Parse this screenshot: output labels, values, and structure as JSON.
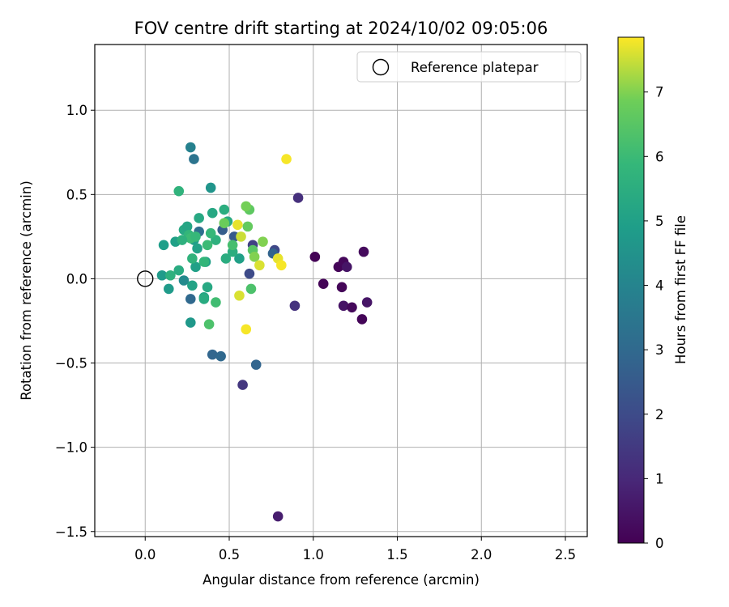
{
  "chart_data": {
    "type": "scatter",
    "title": "FOV centre drift starting at 2024/10/02 09:05:06",
    "xlabel": "Angular distance from reference (arcmin)",
    "ylabel": "Rotation from reference (arcmin)",
    "xlim": [
      -0.3,
      2.63
    ],
    "ylim": [
      -1.53,
      1.39
    ],
    "xticks": [
      0.0,
      0.5,
      1.0,
      1.5,
      2.0,
      2.5
    ],
    "xtick_labels": [
      "0.0",
      "0.5",
      "1.0",
      "1.5",
      "2.0",
      "2.5"
    ],
    "yticks": [
      -1.5,
      -1.0,
      -0.5,
      0.0,
      0.5,
      1.0
    ],
    "ytick_labels": [
      "−1.5",
      "−1.0",
      "−0.5",
      "0.0",
      "0.5",
      "1.0"
    ],
    "grid": true,
    "legend": {
      "placement": "top-right",
      "entries": [
        "Reference platepar"
      ]
    },
    "reference_point": {
      "x": 0.0,
      "y": 0.0,
      "marker": "open-circle"
    },
    "colorbar": {
      "label": "Hours from first FF file",
      "colormap": "viridis",
      "range": [
        0,
        7.85
      ],
      "ticks": [
        0,
        1,
        2,
        3,
        4,
        5,
        6,
        7
      ],
      "tick_labels": [
        "0",
        "1",
        "2",
        "3",
        "4",
        "5",
        "6",
        "7"
      ]
    },
    "points": [
      {
        "x": 1.01,
        "y": 0.13,
        "h": 0.05
      },
      {
        "x": 1.06,
        "y": -0.03,
        "h": 0.08
      },
      {
        "x": 1.15,
        "y": 0.07,
        "h": 0.1
      },
      {
        "x": 1.17,
        "y": -0.05,
        "h": 0.12
      },
      {
        "x": 1.18,
        "y": 0.1,
        "h": 0.15
      },
      {
        "x": 1.2,
        "y": 0.07,
        "h": 0.5
      },
      {
        "x": 1.18,
        "y": -0.16,
        "h": 0.45
      },
      {
        "x": 1.23,
        "y": -0.17,
        "h": 0.2
      },
      {
        "x": 1.29,
        "y": -0.24,
        "h": 0.1
      },
      {
        "x": 1.3,
        "y": 0.16,
        "h": 0.25
      },
      {
        "x": 1.32,
        "y": -0.14,
        "h": 0.5
      },
      {
        "x": 0.79,
        "y": -1.41,
        "h": 0.7
      },
      {
        "x": 0.91,
        "y": 0.48,
        "h": 1.2
      },
      {
        "x": 0.89,
        "y": -0.16,
        "h": 1.3
      },
      {
        "x": 0.58,
        "y": -0.63,
        "h": 1.4
      },
      {
        "x": 0.64,
        "y": 0.2,
        "h": 1.7
      },
      {
        "x": 0.77,
        "y": 0.17,
        "h": 1.9
      },
      {
        "x": 0.62,
        "y": 0.03,
        "h": 2.0
      },
      {
        "x": 0.53,
        "y": 0.25,
        "h": 2.5
      },
      {
        "x": 0.46,
        "y": 0.29,
        "h": 2.6
      },
      {
        "x": 0.76,
        "y": 0.15,
        "h": 2.8
      },
      {
        "x": 0.66,
        "y": -0.51,
        "h": 2.85
      },
      {
        "x": 0.4,
        "y": -0.45,
        "h": 2.9
      },
      {
        "x": 0.45,
        "y": -0.46,
        "h": 3.0
      },
      {
        "x": 0.27,
        "y": -0.12,
        "h": 3.0
      },
      {
        "x": 0.32,
        "y": 0.28,
        "h": 3.2
      },
      {
        "x": 0.29,
        "y": 0.71,
        "h": 3.4
      },
      {
        "x": 0.27,
        "y": 0.78,
        "h": 3.9
      },
      {
        "x": 0.39,
        "y": 0.54,
        "h": 4.6
      },
      {
        "x": 0.23,
        "y": -0.01,
        "h": 4.2
      },
      {
        "x": 0.27,
        "y": -0.26,
        "h": 4.7
      },
      {
        "x": 0.14,
        "y": -0.06,
        "h": 4.8
      },
      {
        "x": 0.1,
        "y": 0.02,
        "h": 4.8
      },
      {
        "x": 0.11,
        "y": 0.2,
        "h": 4.9
      },
      {
        "x": 0.18,
        "y": 0.22,
        "h": 5.0
      },
      {
        "x": 0.23,
        "y": 0.29,
        "h": 5.3
      },
      {
        "x": 0.25,
        "y": 0.31,
        "h": 5.2
      },
      {
        "x": 0.29,
        "y": 0.23,
        "h": 4.95
      },
      {
        "x": 0.31,
        "y": 0.18,
        "h": 5.05
      },
      {
        "x": 0.3,
        "y": 0.07,
        "h": 5.0
      },
      {
        "x": 0.28,
        "y": -0.04,
        "h": 5.1
      },
      {
        "x": 0.35,
        "y": -0.11,
        "h": 5.2
      },
      {
        "x": 0.35,
        "y": -0.12,
        "h": 5.4
      },
      {
        "x": 0.37,
        "y": -0.05,
        "h": 5.3
      },
      {
        "x": 0.36,
        "y": 0.1,
        "h": 5.0
      },
      {
        "x": 0.4,
        "y": 0.39,
        "h": 5.25
      },
      {
        "x": 0.42,
        "y": 0.23,
        "h": 5.6
      },
      {
        "x": 0.47,
        "y": 0.41,
        "h": 5.5
      },
      {
        "x": 0.49,
        "y": 0.34,
        "h": 5.4
      },
      {
        "x": 0.48,
        "y": 0.12,
        "h": 5.45
      },
      {
        "x": 0.56,
        "y": 0.12,
        "h": 5.0
      },
      {
        "x": 0.52,
        "y": 0.16,
        "h": 5.5
      },
      {
        "x": 0.32,
        "y": 0.36,
        "h": 5.3
      },
      {
        "x": 0.2,
        "y": 0.52,
        "h": 5.7
      },
      {
        "x": 0.2,
        "y": 0.05,
        "h": 5.4
      },
      {
        "x": 0.15,
        "y": 0.02,
        "h": 5.6
      },
      {
        "x": 0.28,
        "y": 0.12,
        "h": 5.7
      },
      {
        "x": 0.26,
        "y": 0.26,
        "h": 5.8
      },
      {
        "x": 0.27,
        "y": 0.24,
        "h": 6.0
      },
      {
        "x": 0.3,
        "y": 0.25,
        "h": 5.9
      },
      {
        "x": 0.37,
        "y": 0.2,
        "h": 6.0
      },
      {
        "x": 0.39,
        "y": 0.27,
        "h": 5.9
      },
      {
        "x": 0.35,
        "y": 0.1,
        "h": 5.8
      },
      {
        "x": 0.38,
        "y": -0.27,
        "h": 6.3
      },
      {
        "x": 0.42,
        "y": -0.14,
        "h": 6.1
      },
      {
        "x": 0.52,
        "y": 0.2,
        "h": 6.2
      },
      {
        "x": 0.63,
        "y": -0.06,
        "h": 6.3
      },
      {
        "x": 0.62,
        "y": 0.41,
        "h": 6.6
      },
      {
        "x": 0.61,
        "y": 0.31,
        "h": 6.7
      },
      {
        "x": 0.64,
        "y": 0.17,
        "h": 6.5
      },
      {
        "x": 0.57,
        "y": 0.25,
        "h": 7.5
      },
      {
        "x": 0.55,
        "y": 0.32,
        "h": 7.7
      },
      {
        "x": 0.6,
        "y": 0.43,
        "h": 6.9
      },
      {
        "x": 0.65,
        "y": 0.13,
        "h": 7.0
      },
      {
        "x": 0.7,
        "y": 0.22,
        "h": 7.0
      },
      {
        "x": 0.68,
        "y": 0.08,
        "h": 7.6
      },
      {
        "x": 0.79,
        "y": 0.12,
        "h": 7.7
      },
      {
        "x": 0.81,
        "y": 0.08,
        "h": 7.8
      },
      {
        "x": 0.56,
        "y": -0.1,
        "h": 7.6
      },
      {
        "x": 0.6,
        "y": -0.3,
        "h": 7.8
      },
      {
        "x": 0.84,
        "y": 0.71,
        "h": 7.8
      },
      {
        "x": 0.47,
        "y": 0.33,
        "h": 6.8
      },
      {
        "x": 0.22,
        "y": 0.23,
        "h": 5.6
      }
    ]
  }
}
